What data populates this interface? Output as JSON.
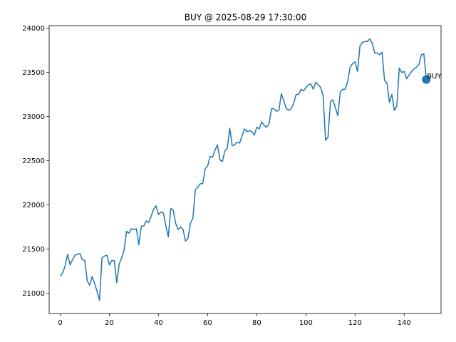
{
  "chart_data": {
    "type": "line",
    "title": "BUY @ 2025-08-29 17:30:00",
    "xlabel": "",
    "ylabel": "",
    "xlim": [
      -4.5,
      155
    ],
    "ylim": [
      20770,
      24030
    ],
    "xticks": [
      0,
      20,
      40,
      60,
      80,
      100,
      120,
      140
    ],
    "yticks": [
      21000,
      21500,
      22000,
      22500,
      23000,
      23500,
      24000
    ],
    "grid": false,
    "series": [
      {
        "color": "#1f77b4",
        "values": [
          21190,
          21230,
          21310,
          21440,
          21320,
          21380,
          21430,
          21440,
          21450,
          21380,
          21370,
          21140,
          21090,
          21190,
          21110,
          21020,
          20920,
          21400,
          21420,
          21430,
          21320,
          21370,
          21370,
          21120,
          21330,
          21400,
          21490,
          21700,
          21680,
          21730,
          21720,
          21730,
          21550,
          21760,
          21760,
          21820,
          21800,
          21870,
          21950,
          21990,
          21890,
          21920,
          21910,
          21760,
          21640,
          21960,
          21940,
          21790,
          21720,
          21750,
          21720,
          21590,
          21620,
          21790,
          21850,
          22170,
          22200,
          22240,
          22240,
          22410,
          22440,
          22550,
          22540,
          22620,
          22680,
          22510,
          22490,
          22610,
          22640,
          22870,
          22670,
          22680,
          22710,
          22700,
          22780,
          22860,
          22830,
          22840,
          22830,
          22790,
          22880,
          22860,
          22940,
          22900,
          22880,
          22920,
          23090,
          23090,
          23060,
          23070,
          23260,
          23180,
          23090,
          23070,
          23090,
          23150,
          23250,
          23250,
          23310,
          23290,
          23330,
          23360,
          23370,
          23310,
          23390,
          23360,
          23330,
          23240,
          22730,
          22770,
          23170,
          23190,
          23100,
          23010,
          23280,
          23310,
          23310,
          23400,
          23560,
          23600,
          23620,
          23510,
          23800,
          23840,
          23850,
          23850,
          23880,
          23830,
          23720,
          23720,
          23700,
          23730,
          23410,
          23380,
          23160,
          23250,
          23070,
          23120,
          23550,
          23500,
          23510,
          23430,
          23470,
          23510,
          23540,
          23560,
          23590,
          23700,
          23710,
          23420
        ]
      }
    ],
    "markers": [
      {
        "x": 149,
        "y": 23420,
        "label": "BUY",
        "color": "#1f77b4"
      }
    ]
  }
}
